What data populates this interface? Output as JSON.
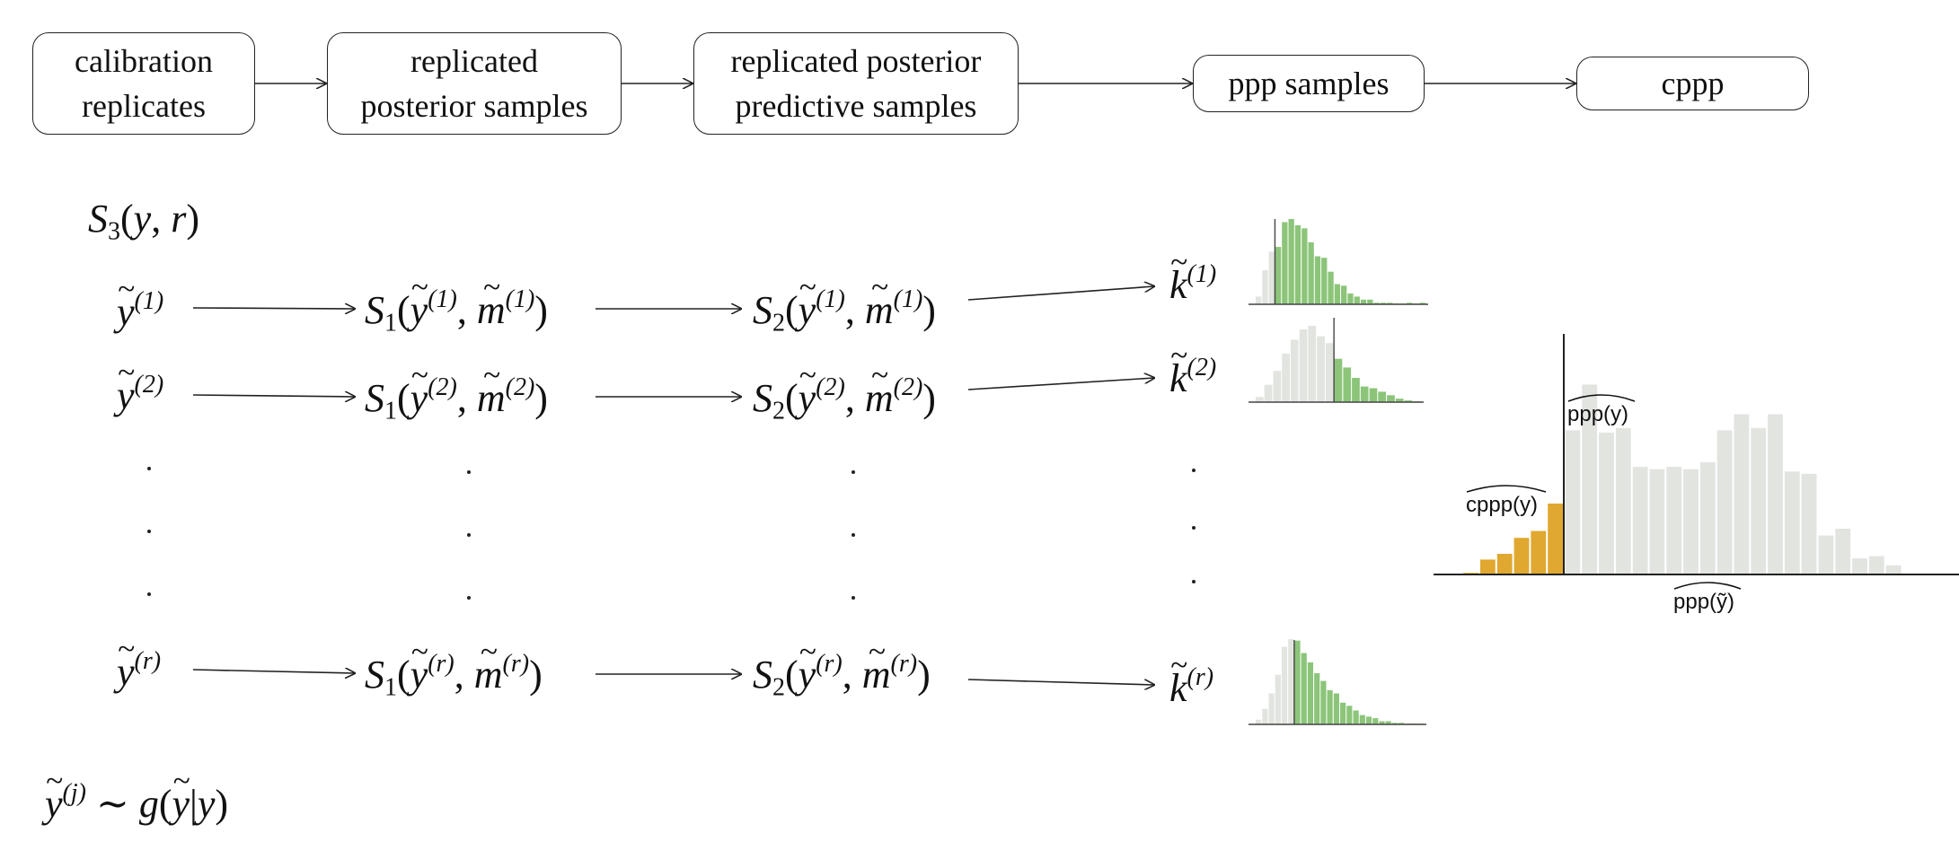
{
  "pipeline": {
    "steps": [
      {
        "label": "calibration\nreplicates"
      },
      {
        "label": "replicated\nposterior samples"
      },
      {
        "label": "replicated posterior\npredictive samples"
      },
      {
        "label": "ppp samples"
      },
      {
        "label": "cppp"
      }
    ]
  },
  "formulas": {
    "s3_label": "S3(y, r)",
    "sampling_label": "ỹ(j) ∼ g(ỹ|y)"
  },
  "rows": [
    {
      "sup": "(1)"
    },
    {
      "sup": "(2)"
    },
    {
      "sup": "(r)"
    }
  ],
  "main_hist": {
    "ppp_y_label": "ppp(y)",
    "cppp_y_label": "cppp(y)",
    "ppp_tilde_label": "ppp(ỹ)",
    "colors": {
      "below": "#e0a830",
      "above": "#e2e4e0",
      "axis": "#222222"
    },
    "below_values": [
      0.7,
      6.5,
      9.0,
      16.0,
      19.0,
      31.0
    ],
    "above_values": [
      63,
      83,
      62,
      64,
      47,
      46,
      47,
      46,
      49,
      63,
      70,
      64,
      70,
      45,
      44,
      17,
      20,
      7,
      8,
      4
    ]
  },
  "mini_hists": [
    {
      "name": "k1",
      "colors": {
        "below": "#e2e4e0",
        "above": "#8cc57a"
      },
      "split": 3,
      "values": [
        5,
        22,
        34,
        37,
        53,
        55,
        51,
        49,
        40,
        31,
        30,
        21,
        13,
        12,
        7,
        5,
        3,
        3,
        1,
        1,
        1,
        0.5,
        0.5,
        1,
        0.5,
        1
      ]
    },
    {
      "name": "k2",
      "colors": {
        "below": "#e2e4e0",
        "above": "#8cc57a"
      },
      "split": 9,
      "values": [
        3,
        10,
        18,
        28,
        36,
        42,
        44,
        38,
        34,
        25,
        20,
        14,
        9,
        8,
        6,
        4,
        2,
        1,
        0.5
      ]
    },
    {
      "name": "kr",
      "colors": {
        "below": "#e2e4e0",
        "above": "#8cc57a"
      },
      "split": 6,
      "values": [
        3,
        10,
        20,
        32,
        50,
        55,
        54,
        46,
        40,
        33,
        28,
        22,
        20,
        14,
        12,
        9,
        6,
        5,
        4,
        2,
        2,
        1,
        1,
        0.5,
        0.5,
        0.5
      ]
    }
  ]
}
